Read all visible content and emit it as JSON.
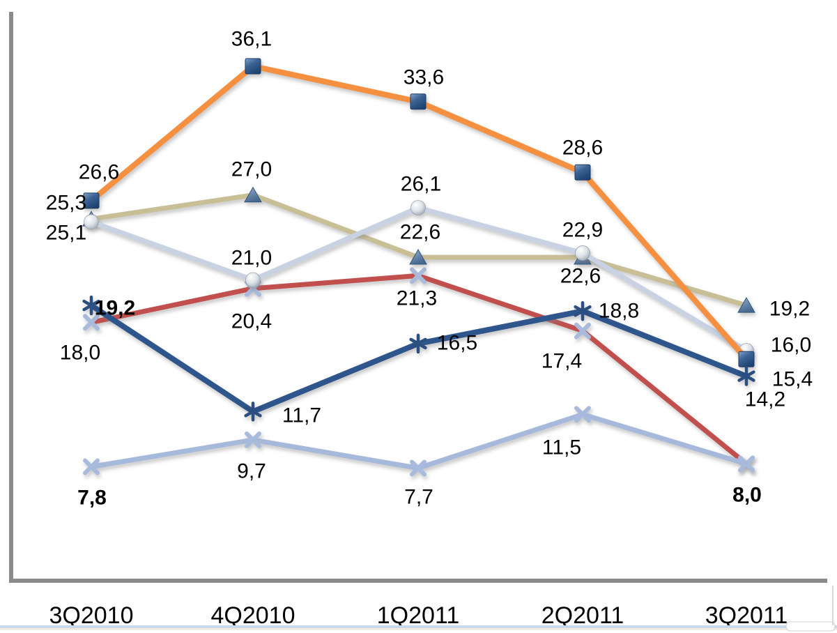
{
  "chart_data": {
    "type": "line",
    "title": "",
    "xlabel": "",
    "ylabel": "",
    "decimal_separator": ",",
    "legend": "none",
    "grid": "off",
    "ylim": [
      0,
      40
    ],
    "categories": [
      "3Q2010",
      "4Q2010",
      "1Q2011",
      "2Q2011",
      "3Q2011"
    ],
    "series": [
      {
        "name": "red-x-series",
        "color": "#C0504D",
        "marker": "x",
        "marker_color": "#A8BBDC",
        "values": [
          18.0,
          20.4,
          21.3,
          17.4,
          8.0
        ],
        "labels": [
          "18,0",
          "20,4",
          "21,3",
          "17,4",
          ""
        ],
        "bold": [
          false,
          false,
          false,
          false,
          false
        ]
      },
      {
        "name": "tan-triangle-series",
        "color": "#C8BF97",
        "marker": "triangle",
        "marker_color": "#46688F",
        "values": [
          25.3,
          27.0,
          22.6,
          22.6,
          19.2
        ],
        "labels": [
          "25,3",
          "27,0",
          "22,6",
          "22,6",
          "19,2"
        ],
        "bold": [
          false,
          false,
          false,
          false,
          false
        ]
      },
      {
        "name": "silver-circle-series",
        "color": "#C8D2E2",
        "marker": "circle",
        "marker_color": "#D5DAE1",
        "values": [
          25.1,
          21.0,
          26.1,
          22.9,
          16.0
        ],
        "labels": [
          "25,1",
          "21,0",
          "26,1",
          "22,9",
          "16,0"
        ],
        "bold": [
          false,
          false,
          false,
          false,
          false
        ]
      },
      {
        "name": "periwinkle-x-series",
        "color": "#A6B9DB",
        "marker": "x",
        "marker_color": "#A8BBDC",
        "values": [
          7.8,
          9.7,
          7.7,
          11.5,
          8.0
        ],
        "labels": [
          "7,8",
          "9,7",
          "7,7",
          "11,5",
          "8,0"
        ],
        "bold": [
          true,
          false,
          false,
          false,
          true
        ]
      },
      {
        "name": "orange-square-series",
        "color": "#F4903F",
        "marker": "square",
        "marker_color": "#3A6394",
        "values": [
          26.6,
          36.1,
          33.6,
          28.6,
          15.4
        ],
        "labels": [
          "26,6",
          "36,1",
          "33,6",
          "28,6",
          "15,4"
        ],
        "bold": [
          false,
          false,
          false,
          false,
          false
        ]
      },
      {
        "name": "navy-star-series",
        "color": "#2F578C",
        "marker": "star",
        "marker_color": "#2A5080",
        "values": [
          19.2,
          11.7,
          16.5,
          18.8,
          14.2
        ],
        "labels": [
          "19,2",
          "11,7",
          "16,5",
          "18,8",
          "14,2"
        ],
        "bold": [
          true,
          false,
          false,
          false,
          false
        ]
      }
    ]
  },
  "axes": {
    "x_axis_color": "#8A8A8A",
    "y_axis_color": "#8A8A8A"
  },
  "window": {
    "bottom_strip_color": "#C9D9EC"
  }
}
